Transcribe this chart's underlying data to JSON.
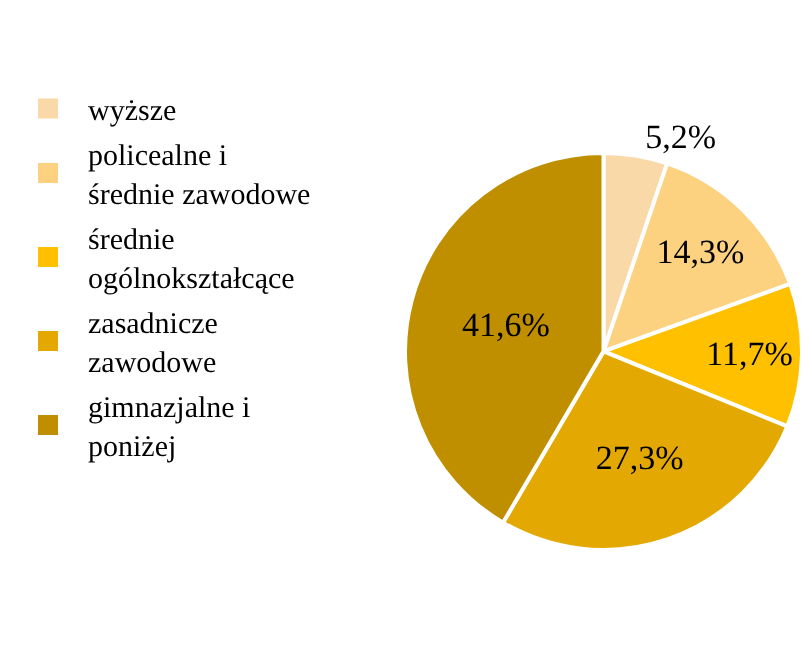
{
  "chart_data": {
    "type": "pie",
    "categories": [
      "wyższe",
      "policealne i średnie zawodowe",
      "średnie ogólnokształcące",
      "zasadnicze zawodowe",
      "gimnazjalne i poniżej"
    ],
    "values": [
      5.2,
      14.3,
      11.7,
      27.3,
      41.6
    ],
    "colors": [
      "#fad9a8",
      "#fcd17f",
      "#ffc000",
      "#e3a902",
      "#bf8f00"
    ],
    "value_labels": [
      "5,2%",
      "14,3%",
      "11,7%",
      "27,3%",
      "41,6%"
    ],
    "legend": "left"
  }
}
